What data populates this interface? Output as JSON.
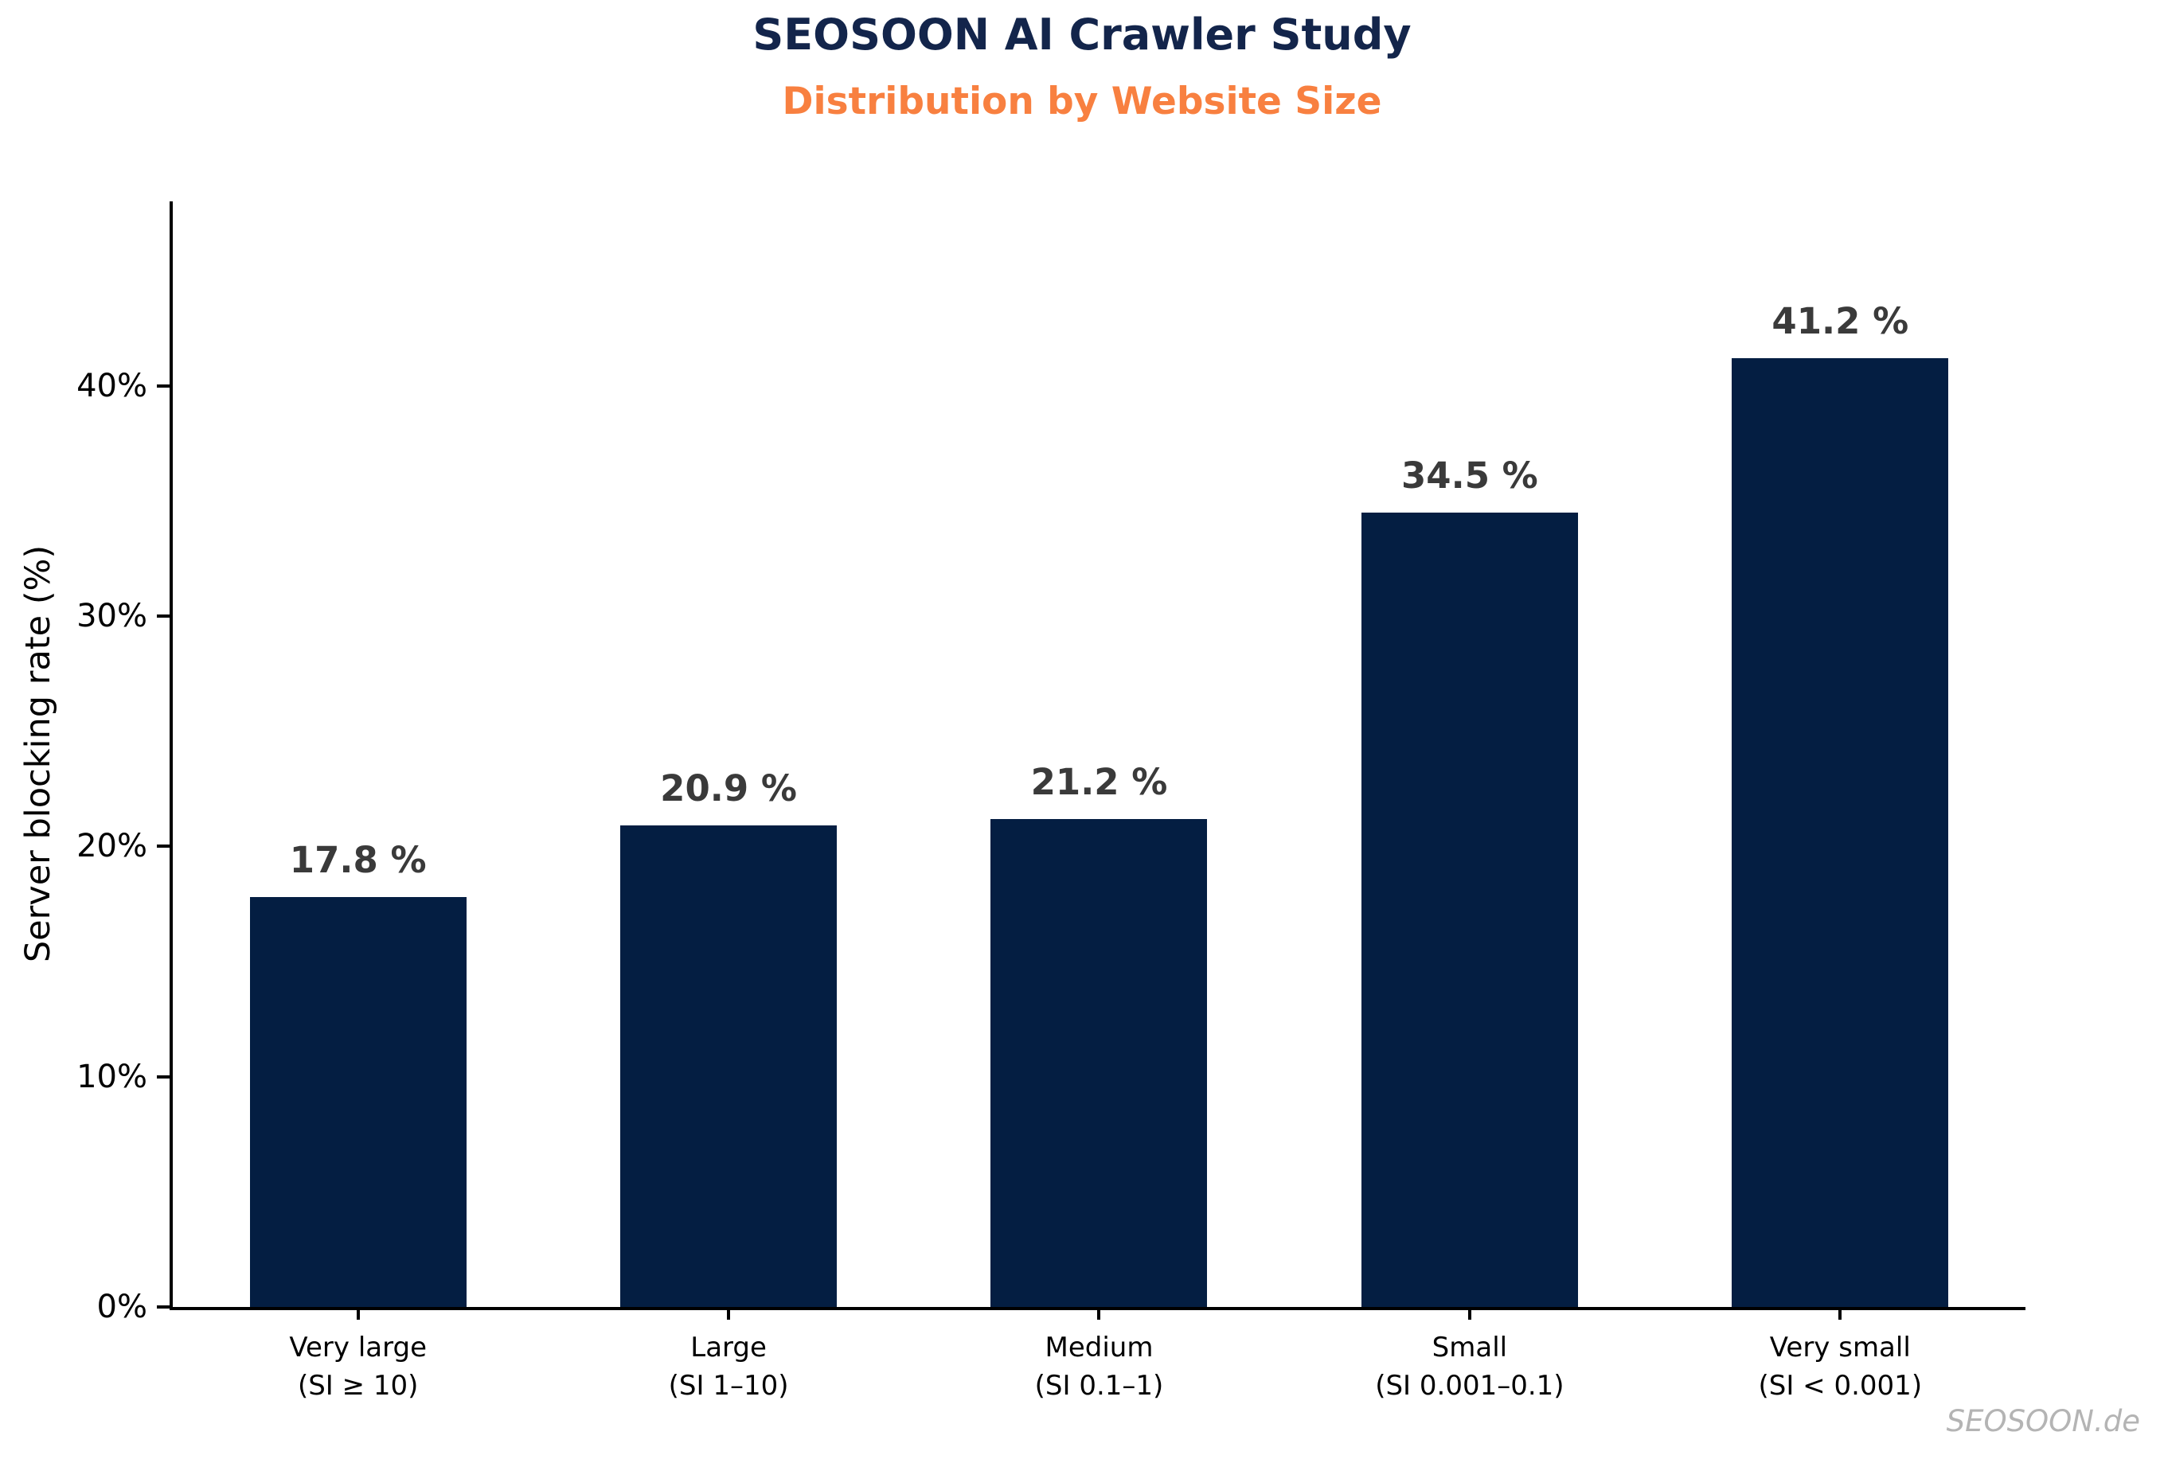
{
  "chart_data": {
    "type": "bar",
    "title": "SEOSOON AI Crawler Study",
    "subtitle": "Distribution by Website Size",
    "ylabel": "Server blocking rate (%)",
    "categories": [
      {
        "label": "Very large",
        "range": "(SI ≥ 10)"
      },
      {
        "label": "Large",
        "range": "(SI 1–10)"
      },
      {
        "label": "Medium",
        "range": "(SI 0.1–1)"
      },
      {
        "label": "Small",
        "range": "(SI 0.001–0.1)"
      },
      {
        "label": "Very small",
        "range": "(SI < 0.001)"
      }
    ],
    "values": [
      17.8,
      20.9,
      21.2,
      34.5,
      41.2
    ],
    "value_labels": [
      "17.8 %",
      "20.9 %",
      "21.2 %",
      "34.5 %",
      "41.2 %"
    ],
    "yticks": [
      0,
      10,
      20,
      30,
      40
    ],
    "ytick_labels": [
      "0%",
      "10%",
      "20%",
      "30%",
      "40%"
    ],
    "ylim": [
      0,
      48
    ],
    "grid": false,
    "legend": "none",
    "bar_color": "#041e42",
    "title_color": "#13254b",
    "subtitle_color": "#f88040",
    "watermark": "SEOSOON.de"
  }
}
